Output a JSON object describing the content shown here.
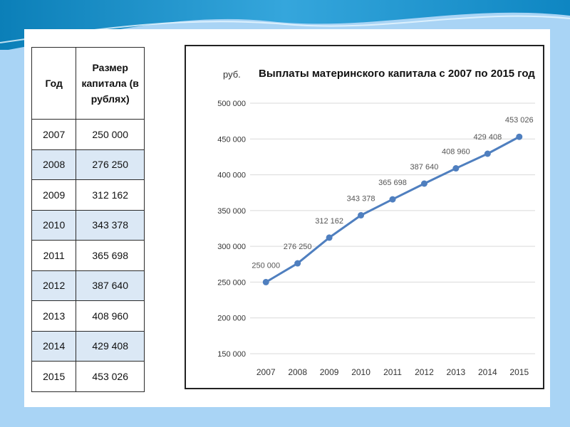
{
  "table": {
    "headers": [
      "Год",
      "Размер капитала (в рублях)"
    ],
    "header_lines": [
      "Размер",
      "капитала (в",
      "рублях)"
    ],
    "rows": [
      [
        "2007",
        "250 000"
      ],
      [
        "2008",
        "276 250"
      ],
      [
        "2009",
        "312 162"
      ],
      [
        "2010",
        "343 378"
      ],
      [
        "2011",
        "365 698"
      ],
      [
        "2012",
        "387 640"
      ],
      [
        "2013",
        "408 960"
      ],
      [
        "2014",
        "429 408"
      ],
      [
        "2015",
        "453 026"
      ]
    ]
  },
  "colors": {
    "background": "#a9d4f5",
    "line": "#4f7fbf",
    "table_alt_row": "#dbe8f5"
  },
  "chart_data": {
    "type": "line",
    "title": "Выплаты материнского капитала с 2007 по 2015 год",
    "ylabel": "руб.",
    "xlabel": "",
    "categories": [
      "2007",
      "2008",
      "2009",
      "2010",
      "2011",
      "2012",
      "2013",
      "2014",
      "2015"
    ],
    "series": [
      {
        "values": [
          250000,
          276250,
          312162,
          343378,
          365698,
          387640,
          408960,
          429408,
          453026
        ]
      }
    ],
    "data_labels": [
      "250 000",
      "276 250",
      "312 162",
      "343 378",
      "365 698",
      "387 640",
      "408 960",
      "429 408",
      "453 026"
    ],
    "y_ticks": [
      "150 000",
      "200 000",
      "250 000",
      "300 000",
      "350 000",
      "400 000",
      "450 000",
      "500 000"
    ],
    "ylim": [
      150000,
      500000
    ],
    "grid": true,
    "legend": "none"
  }
}
